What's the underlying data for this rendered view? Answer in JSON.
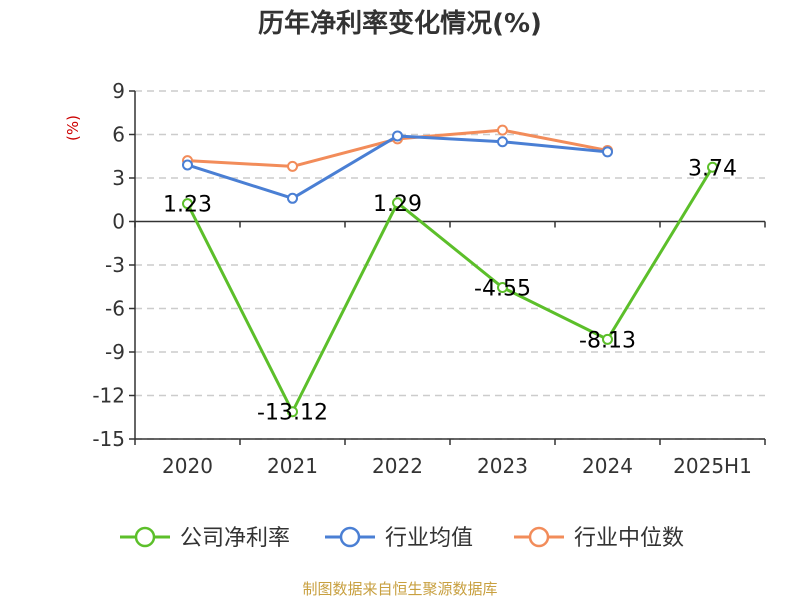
{
  "chart_data": {
    "type": "line",
    "title": "历年净利率变化情况(%)",
    "ylabel": "(%)",
    "categories": [
      "2020",
      "2021",
      "2022",
      "2023",
      "2024",
      "2025H1"
    ],
    "ylim": [
      -15,
      9
    ],
    "yticks": [
      "9",
      "6",
      "3",
      "0",
      "-3",
      "-6",
      "-9",
      "-12",
      "-15"
    ],
    "grid": true,
    "legend_position": "bottom",
    "series": [
      {
        "name": "公司净利率",
        "color": "#5cbf2a",
        "values": [
          1.23,
          -13.12,
          1.29,
          -4.55,
          -8.13,
          3.74
        ],
        "labels": [
          "1.23",
          "-13.12",
          "1.29",
          "-4.55",
          "-8.13",
          "3.74"
        ]
      },
      {
        "name": "行业均值",
        "color": "#4a7fd4",
        "values": [
          3.9,
          1.6,
          5.9,
          5.5,
          4.8,
          null
        ]
      },
      {
        "name": "行业中位数",
        "color": "#f28c5a",
        "values": [
          4.2,
          3.8,
          5.7,
          6.3,
          4.9,
          null
        ]
      }
    ]
  },
  "source": "制图数据来自恒生聚源数据库"
}
